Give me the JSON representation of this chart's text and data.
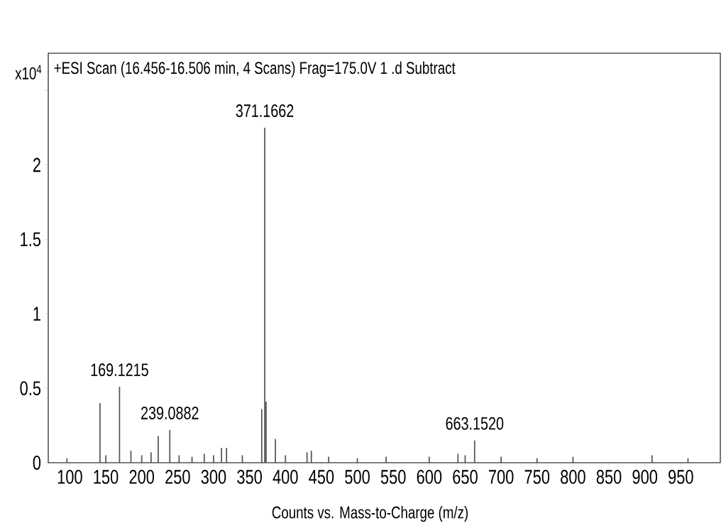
{
  "chart_data": {
    "type": "bar",
    "title": "+ESI Scan (16.456-16.506 min, 4 Scans) Frag=175.0V 1 .d Subtract",
    "xlabel": "Counts vs. Mass-to-Charge (m/z)",
    "ylabel": "x10$^{4}$",
    "x": [
      96,
      142,
      150,
      169.12,
      185,
      200,
      213,
      223,
      239.09,
      252,
      270,
      287,
      300,
      311,
      318,
      340,
      367,
      371.17,
      373,
      386,
      400,
      430,
      436,
      460,
      500,
      540,
      600,
      640,
      650,
      663.15,
      700,
      750,
      800,
      910,
      960
    ],
    "series": [
      {
        "color": "#555555",
        "values": [
          0.03,
          0.4,
          0.05,
          0.51,
          0.08,
          0.05,
          0.07,
          0.18,
          0.22,
          0.05,
          0.04,
          0.06,
          0.05,
          0.1,
          0.1,
          0.05,
          0.36,
          2.25,
          0.41,
          0.16,
          0.05,
          0.07,
          0.08,
          0.04,
          0.03,
          0.04,
          0.04,
          0.06,
          0.05,
          0.15,
          0.04,
          0.03,
          0.04,
          0.05,
          0.03
        ]
      }
    ],
    "annotations": [
      {
        "text": "371.1662",
        "x": 371.17,
        "y": 2.25
      },
      {
        "text": "169.1215",
        "x": 169.12,
        "y": 0.51
      },
      {
        "text": "239.0882",
        "x": 239.09,
        "y": 0.22
      },
      {
        "text": "663.1520",
        "x": 663.15,
        "y": 0.15
      }
    ],
    "xlim": [
      70,
      1005
    ],
    "ylim": [
      0,
      2.75
    ],
    "xticks": [
      100,
      150,
      200,
      250,
      300,
      350,
      400,
      450,
      500,
      550,
      600,
      650,
      700,
      750,
      800,
      850,
      900,
      950
    ],
    "yticks": [
      0,
      0.5,
      1,
      1.5,
      2,
      {
        "value": 2.5,
        "label": null
      }
    ],
    "grid": false
  }
}
